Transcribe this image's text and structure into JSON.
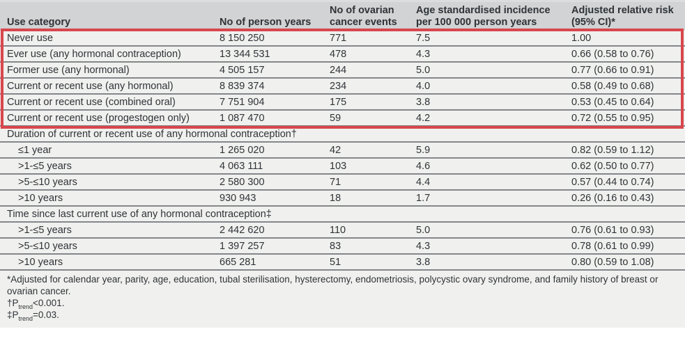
{
  "table": {
    "columns": [
      "Use category",
      "No of person years",
      "No of ovarian cancer events",
      "Age standardised incidence per 100 000 person years",
      "Adjusted relative risk (95% CI)*"
    ],
    "rows": [
      {
        "category": "Never use",
        "person_years": "8 150 250",
        "events": "771",
        "incidence": "7.5",
        "relative_risk": "1.00"
      },
      {
        "category": "Ever use (any hormonal contraception)",
        "person_years": "13 344 531",
        "events": "478",
        "incidence": "4.3",
        "relative_risk": "0.66 (0.58 to 0.76)"
      },
      {
        "category": "Former use (any hormonal)",
        "person_years": "4 505 157",
        "events": "244",
        "incidence": "5.0",
        "relative_risk": "0.77 (0.66 to 0.91)"
      },
      {
        "category": "Current or recent use (any hormonal)",
        "person_years": "8 839 374",
        "events": "234",
        "incidence": "4.0",
        "relative_risk": "0.58 (0.49 to 0.68)"
      },
      {
        "category": "Current or recent use (combined oral)",
        "person_years": "7 751 904",
        "events": "175",
        "incidence": "3.8",
        "relative_risk": "0.53 (0.45 to 0.64)"
      },
      {
        "category": "Current or recent use (progestogen only)",
        "person_years": "1 087 470",
        "events": "59",
        "incidence": "4.2",
        "relative_risk": "0.72 (0.55 to 0.95)"
      }
    ],
    "section1": {
      "label": "Duration of current or recent use of any hormonal contraception†",
      "rows": [
        {
          "category": "≤1 year",
          "person_years": "1 265 020",
          "events": "42",
          "incidence": "5.9",
          "relative_risk": "0.82 (0.59 to 1.12)"
        },
        {
          "category": ">1-≤5 years",
          "person_years": "4 063 111",
          "events": "103",
          "incidence": "4.6",
          "relative_risk": "0.62 (0.50 to 0.77)"
        },
        {
          "category": ">5-≤10 years",
          "person_years": "2 580 300",
          "events": "71",
          "incidence": "4.4",
          "relative_risk": "0.57 (0.44 to 0.74)"
        },
        {
          "category": ">10 years",
          "person_years": "930 943",
          "events": "18",
          "incidence": "1.7",
          "relative_risk": "0.26 (0.16 to 0.43)"
        }
      ]
    },
    "section2": {
      "label": "Time since last current use of any hormonal contraception‡",
      "rows": [
        {
          "category": ">1-≤5 years",
          "person_years": "2 442 620",
          "events": "110",
          "incidence": "5.0",
          "relative_risk": "0.76 (0.61 to 0.93)"
        },
        {
          "category": ">5-≤10 years",
          "person_years": "1 397 257",
          "events": "83",
          "incidence": "4.3",
          "relative_risk": "0.78 (0.61 to 0.99)"
        },
        {
          "category": ">10 years",
          "person_years": "665 281",
          "events": "51",
          "incidence": "3.8",
          "relative_risk": "0.80 (0.59 to 1.08)"
        }
      ]
    },
    "footnotes": {
      "adjusted": "*Adjusted for calendar year, parity, age, education, tubal sterilisation, hysterectomy, endometriosis, polycystic ovary syndrome, and family history of breast or ovarian cancer.",
      "dagger_prefix": "†P",
      "dagger_sub": "trend",
      "dagger_rest": "<0.001.",
      "ddagger_prefix": "‡P",
      "ddagger_sub": "trend",
      "ddagger_rest": "=0.03."
    },
    "colors": {
      "highlight_border": "#d8474d",
      "header_bg": "#d1d3d4",
      "body_bg": "#f0f0ee",
      "rule": "#84868a"
    }
  }
}
